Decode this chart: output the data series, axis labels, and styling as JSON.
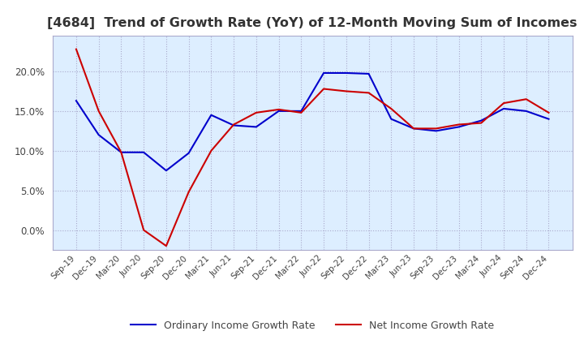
{
  "title": "[4684]  Trend of Growth Rate (YoY) of 12-Month Moving Sum of Incomes",
  "title_fontsize": 11.5,
  "ylim": [
    -0.025,
    0.245
  ],
  "yticks": [
    0.0,
    0.05,
    0.1,
    0.15,
    0.2
  ],
  "background_color": "#ffffff",
  "plot_bg_color": "#ddeeff",
  "grid_color": "#aaaacc",
  "ordinary_color": "#0000cc",
  "net_color": "#cc0000",
  "legend_ordinary": "Ordinary Income Growth Rate",
  "legend_net": "Net Income Growth Rate",
  "x_labels": [
    "Sep-19",
    "Dec-19",
    "Mar-20",
    "Jun-20",
    "Sep-20",
    "Dec-20",
    "Mar-21",
    "Jun-21",
    "Sep-21",
    "Dec-21",
    "Mar-22",
    "Jun-22",
    "Sep-22",
    "Dec-22",
    "Mar-23",
    "Jun-23",
    "Sep-23",
    "Dec-23",
    "Mar-24",
    "Jun-24",
    "Sep-24",
    "Dec-24"
  ],
  "ordinary": [
    0.163,
    0.12,
    0.098,
    0.098,
    0.075,
    0.097,
    0.145,
    0.132,
    0.13,
    0.15,
    0.15,
    0.198,
    0.198,
    0.197,
    0.14,
    0.128,
    0.125,
    0.13,
    0.138,
    0.153,
    0.15,
    0.14
  ],
  "net": [
    0.228,
    0.15,
    0.098,
    0.0,
    -0.02,
    0.048,
    0.1,
    0.133,
    0.148,
    0.152,
    0.148,
    0.178,
    0.175,
    0.173,
    0.153,
    0.128,
    0.128,
    0.133,
    0.135,
    0.16,
    0.165,
    0.148
  ]
}
